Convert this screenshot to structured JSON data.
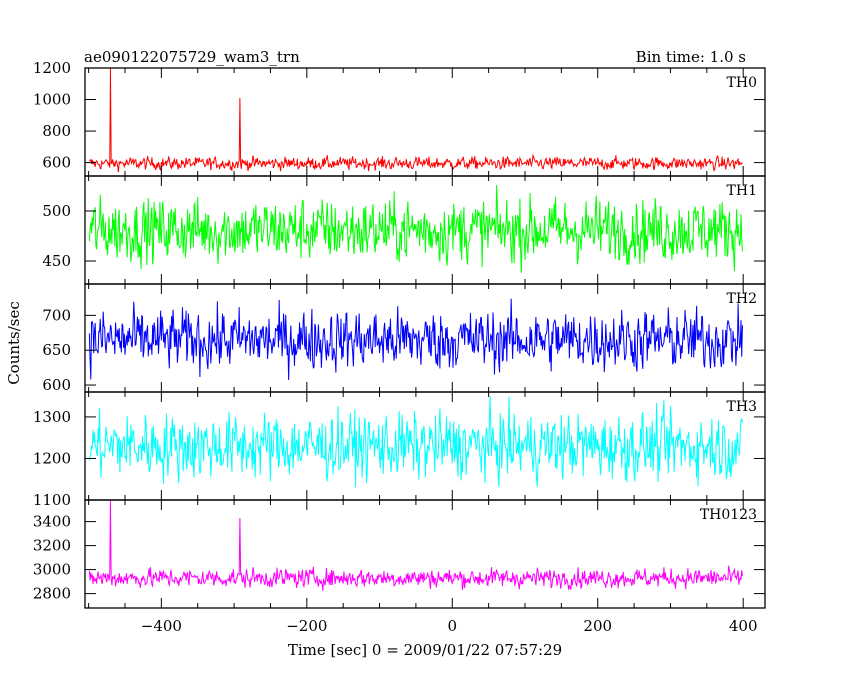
{
  "chart_data": {
    "type": "line",
    "title": "ae090122075729_wam3_trn",
    "subtitle": "Bin time: 1.0 s",
    "xlabel": "Time [sec] 0 = 2009/01/22 07:57:29",
    "ylabel": "Counts/sec",
    "xlim": [
      -505,
      430
    ],
    "xticks": [
      "−400",
      "−200",
      "0",
      "200",
      "400"
    ],
    "xtick_values": [
      -400,
      -200,
      0,
      200,
      400
    ],
    "grid": false,
    "x_sampling": {
      "start": -499,
      "end": 399,
      "bin": 1.0
    },
    "panels": [
      {
        "label": "TH0",
        "color": "#ff0000",
        "ylim": [
          515,
          1200
        ],
        "yticks": [
          "600",
          "800",
          "1000",
          "1200"
        ],
        "ytick_values": [
          600,
          800,
          1000,
          1200
        ],
        "baseline": 595,
        "noise": 28,
        "spikes": [
          {
            "x": -470,
            "y": 1200
          },
          {
            "x": -292,
            "y": 1010
          }
        ]
      },
      {
        "label": "TH1",
        "color": "#00ff00",
        "ylim": [
          427,
          535
        ],
        "yticks": [
          "450",
          "500"
        ],
        "ytick_values": [
          450,
          500
        ],
        "baseline": 481,
        "noise": 22,
        "spikes": []
      },
      {
        "label": "TH2",
        "color": "#0000ff",
        "ylim": [
          590,
          745
        ],
        "yticks": [
          "600",
          "650",
          "700"
        ],
        "ytick_values": [
          600,
          650,
          700
        ],
        "baseline": 665,
        "noise": 30,
        "spikes": []
      },
      {
        "label": "TH3",
        "color": "#00ffff",
        "ylim": [
          1100,
          1360
        ],
        "yticks": [
          "1100",
          "1200",
          "1300"
        ],
        "ytick_values": [
          1100,
          1200,
          1300
        ],
        "baseline": 1230,
        "noise": 55,
        "spikes": []
      },
      {
        "label": "TH0123",
        "color": "#ff00ff",
        "ylim": [
          2680,
          3580
        ],
        "yticks": [
          "2800",
          "3000",
          "3200",
          "3400"
        ],
        "ytick_values": [
          2800,
          3000,
          3200,
          3400
        ],
        "baseline": 2930,
        "noise": 55,
        "spikes": [
          {
            "x": -470,
            "y": 3580
          },
          {
            "x": -292,
            "y": 3430
          }
        ]
      }
    ]
  }
}
